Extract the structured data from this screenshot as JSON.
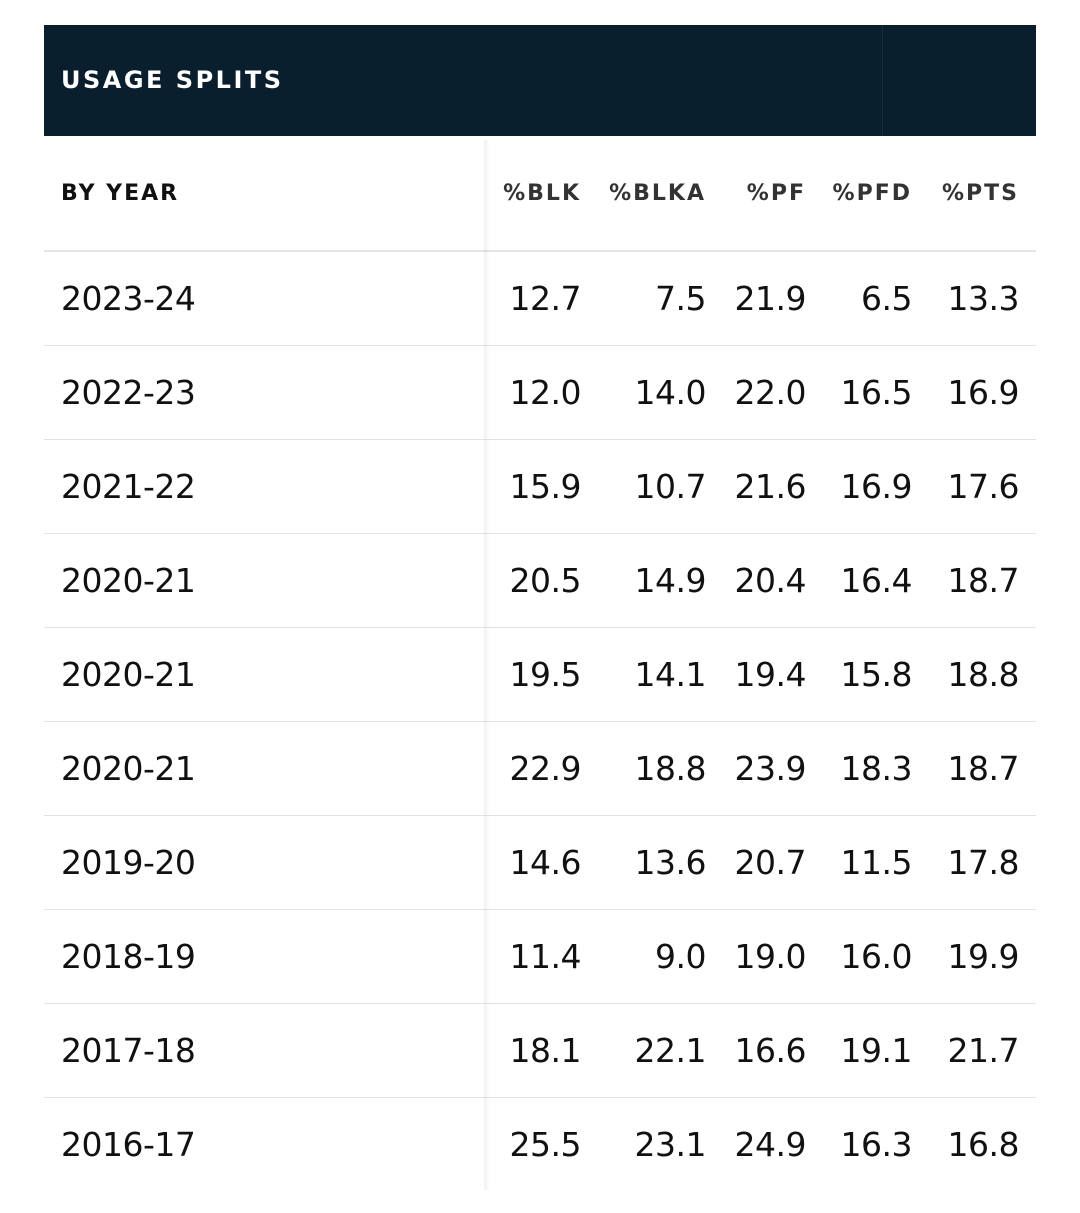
{
  "panel": {
    "title": "USAGE SPLITS"
  },
  "table": {
    "header_label": "BY YEAR",
    "columns": [
      "%BLK",
      "%BLKA",
      "%PF",
      "%PFD",
      "%PTS"
    ],
    "rows": [
      {
        "year": "2023-24",
        "values": [
          "12.7",
          "7.5",
          "21.9",
          "6.5",
          "13.3"
        ]
      },
      {
        "year": "2022-23",
        "values": [
          "12.0",
          "14.0",
          "22.0",
          "16.5",
          "16.9"
        ]
      },
      {
        "year": "2021-22",
        "values": [
          "15.9",
          "10.7",
          "21.6",
          "16.9",
          "17.6"
        ]
      },
      {
        "year": "2020-21",
        "values": [
          "20.5",
          "14.9",
          "20.4",
          "16.4",
          "18.7"
        ]
      },
      {
        "year": "2020-21",
        "values": [
          "19.5",
          "14.1",
          "19.4",
          "15.8",
          "18.8"
        ]
      },
      {
        "year": "2020-21",
        "values": [
          "22.9",
          "18.8",
          "23.9",
          "18.3",
          "18.7"
        ]
      },
      {
        "year": "2019-20",
        "values": [
          "14.6",
          "13.6",
          "20.7",
          "11.5",
          "17.8"
        ]
      },
      {
        "year": "2018-19",
        "values": [
          "11.4",
          "9.0",
          "19.0",
          "16.0",
          "19.9"
        ]
      },
      {
        "year": "2017-18",
        "values": [
          "18.1",
          "22.1",
          "16.6",
          "19.1",
          "21.7"
        ]
      },
      {
        "year": "2016-17",
        "values": [
          "25.5",
          "23.1",
          "24.9",
          "16.3",
          "16.8"
        ]
      }
    ]
  },
  "colors": {
    "header_background": "#0a1f2e",
    "header_text": "#ffffff",
    "row_divider": "#e3e3e3"
  }
}
